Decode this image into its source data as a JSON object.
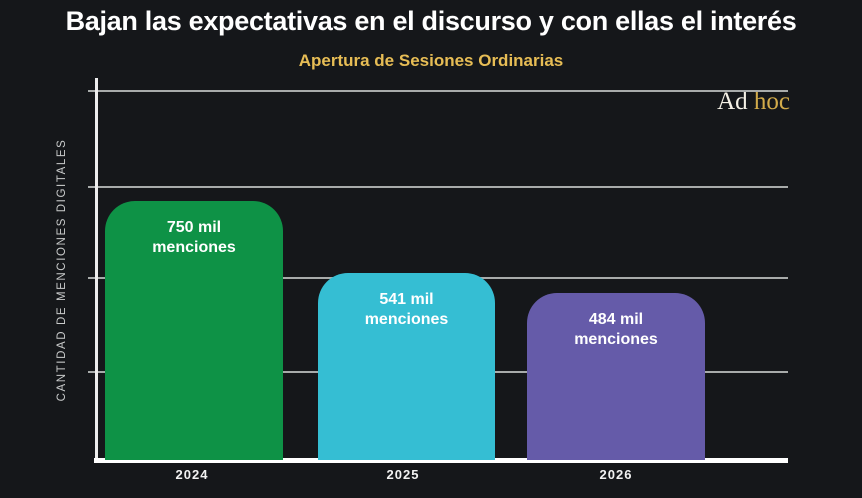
{
  "page": {
    "title": "Bajan las expectativas en el discurso y con ellas el interés",
    "background_color": "#15171A",
    "title_color": "#FFFFFF"
  },
  "logo": {
    "word1": "Ad",
    "word2": "hoc",
    "word1_color": "#F5F1E6",
    "word2_color": "#D2AB4A"
  },
  "chart_data": {
    "type": "bar",
    "title": "Apertura de Sesiones Ordinarias",
    "title_color": "#E7BD55",
    "xlabel": "",
    "ylabel": "CANTIDAD DE MENCIONES DIGITALES",
    "categories": [
      "2024",
      "2025",
      "2026"
    ],
    "values_mil_menciones": [
      750,
      541,
      484
    ],
    "unit": "mil menciones",
    "bar_labels": [
      "750 mil\nmenciones",
      "541 mil\nmenciones",
      "484 mil\nmenciones"
    ],
    "bar_colors": [
      "#0E9246",
      "#35BED3",
      "#655BA9"
    ],
    "ylim_mil": [
      0,
      1073
    ],
    "gridline_count": 4,
    "grid_on": true,
    "grid_color": "#A8ABAA",
    "baseline_color": "#FFFFFF",
    "data_label_color": "#FFFFFF",
    "legend": "none"
  }
}
